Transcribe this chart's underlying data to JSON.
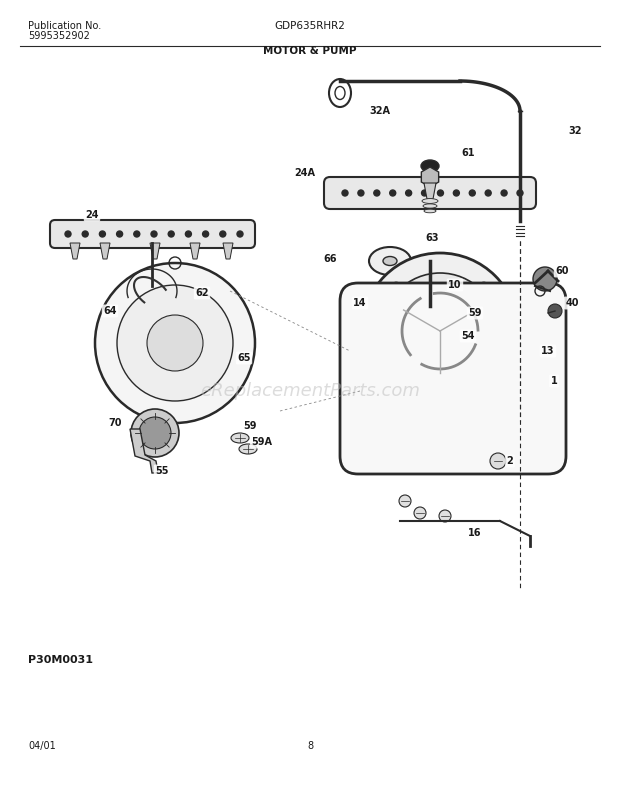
{
  "pub_no_label": "Publication No.",
  "pub_no_value": "5995352902",
  "model": "GDP635RHR2",
  "section": "MOTOR & PUMP",
  "diagram_code": "P30M0031",
  "footer_date": "04/01",
  "footer_page": "8",
  "bg_color": "#ffffff",
  "lc": "#2a2a2a",
  "tc": "#1a1a1a",
  "fig_width": 6.2,
  "fig_height": 7.91,
  "dpi": 100,
  "watermark": "eReplacementParts.com"
}
